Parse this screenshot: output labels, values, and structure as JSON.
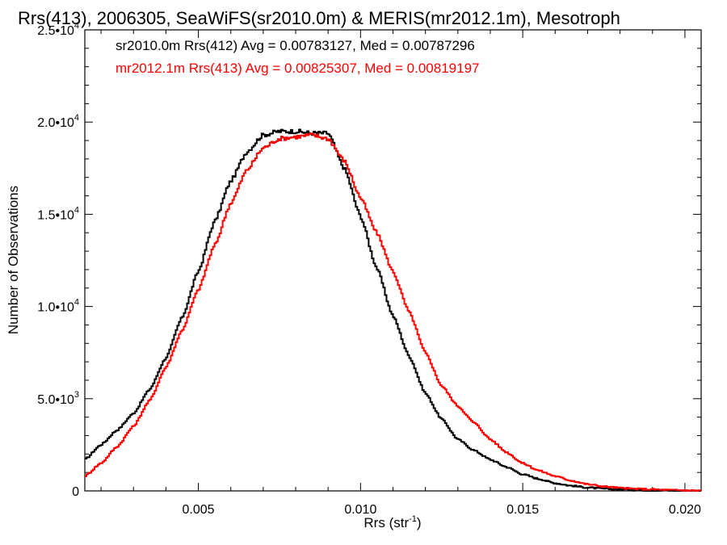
{
  "chart_data": {
    "type": "line",
    "title": "Rrs(413), 2006305, SeaWiFS(sr2010.0m) & MERIS(mr2012.1m), Mesotroph",
    "xlabel_base": "Rrs (str",
    "xlabel_exp": "-1",
    "xlabel_close": ")",
    "ylabel": "Number of Observations",
    "xlim": [
      0.0015,
      0.0205
    ],
    "ylim": [
      0,
      25000
    ],
    "x_ticks": [
      {
        "value": 0.005,
        "label": "0.005"
      },
      {
        "value": 0.01,
        "label": "0.010"
      },
      {
        "value": 0.015,
        "label": "0.015"
      },
      {
        "value": 0.02,
        "label": "0.020"
      }
    ],
    "y_ticks": [
      {
        "value": 0,
        "mant": "0",
        "exp": ""
      },
      {
        "value": 5000,
        "mant": "5.0•10",
        "exp": "3"
      },
      {
        "value": 10000,
        "mant": "1.0•10",
        "exp": "4"
      },
      {
        "value": 15000,
        "mant": "1.5•10",
        "exp": "4"
      },
      {
        "value": 20000,
        "mant": "2.0•10",
        "exp": "4"
      },
      {
        "value": 25000,
        "mant": "2.5•10",
        "exp": "4"
      }
    ],
    "stats": [
      {
        "text": "sr2010.0m Rrs(412) Avg = 0.00783127, Med = 0.00787296",
        "color": "#000000"
      },
      {
        "text": "mr2012.1m Rrs(413) Avg = 0.00825307, Med = 0.00819197",
        "color": "#ff0000"
      }
    ],
    "series": [
      {
        "color": "#000000",
        "x": [
          0.0015,
          0.002,
          0.0025,
          0.003,
          0.0035,
          0.004,
          0.0045,
          0.005,
          0.0055,
          0.006,
          0.0065,
          0.007,
          0.0075,
          0.008,
          0.0085,
          0.009,
          0.0095,
          0.01,
          0.0105,
          0.011,
          0.0115,
          0.012,
          0.0125,
          0.013,
          0.0135,
          0.014,
          0.0145,
          0.015,
          0.0155,
          0.016,
          0.0165,
          0.017,
          0.0175,
          0.018,
          0.0185,
          0.019,
          0.0195,
          0.02,
          0.0205
        ],
        "y": [
          1700,
          2500,
          3300,
          4200,
          5500,
          7200,
          9400,
          11900,
          14600,
          16800,
          18400,
          19300,
          19500,
          19500,
          19400,
          19400,
          17500,
          14900,
          12100,
          9500,
          7300,
          5300,
          3900,
          2800,
          2200,
          1700,
          1300,
          900,
          650,
          420,
          280,
          180,
          120,
          80,
          50,
          30,
          20,
          10,
          5
        ]
      },
      {
        "color": "#ff0000",
        "x": [
          0.0015,
          0.002,
          0.0025,
          0.003,
          0.0035,
          0.004,
          0.0045,
          0.005,
          0.0055,
          0.006,
          0.0065,
          0.007,
          0.0075,
          0.008,
          0.0085,
          0.009,
          0.0095,
          0.01,
          0.0105,
          0.011,
          0.0115,
          0.012,
          0.0125,
          0.013,
          0.0135,
          0.014,
          0.0145,
          0.015,
          0.0155,
          0.016,
          0.0165,
          0.017,
          0.0175,
          0.018,
          0.0185,
          0.019,
          0.0195,
          0.02,
          0.0205
        ],
        "y": [
          800,
          1500,
          2400,
          3500,
          4900,
          6700,
          8700,
          10900,
          13300,
          15600,
          17400,
          18600,
          19100,
          19200,
          19300,
          19100,
          17900,
          15900,
          14000,
          11900,
          9700,
          7500,
          5700,
          4600,
          3700,
          2800,
          2100,
          1500,
          1100,
          800,
          560,
          360,
          240,
          160,
          110,
          80,
          50,
          30,
          15
        ]
      }
    ]
  }
}
